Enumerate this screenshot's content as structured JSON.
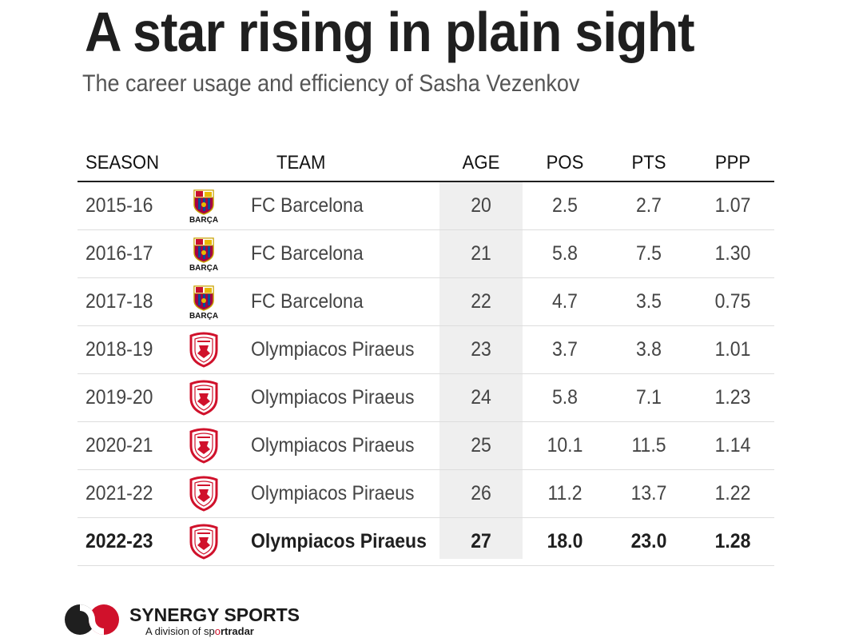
{
  "title": "A star rising in plain sight",
  "subtitle": "The career usage and efficiency of Sasha Vezenkov",
  "colors": {
    "accent_red": "#d0112b",
    "band": "#efefef",
    "text": "#1f1f1f"
  },
  "logos": {
    "barca_text": "BARÇA",
    "barca_icon": "fc-barcelona-crest-icon",
    "olympiacos_icon": "olympiacos-crest-icon"
  },
  "chart_data": {
    "type": "table",
    "columns": [
      "SEASON",
      "TEAM",
      "AGE",
      "POS",
      "PTS",
      "PPP"
    ],
    "rows": [
      {
        "season": "2015-16",
        "team": "FC Barcelona",
        "logo": "barca",
        "age": "20",
        "pos": "2.5",
        "pts": "2.7",
        "ppp": "1.07"
      },
      {
        "season": "2016-17",
        "team": "FC Barcelona",
        "logo": "barca",
        "age": "21",
        "pos": "5.8",
        "pts": "7.5",
        "ppp": "1.30"
      },
      {
        "season": "2017-18",
        "team": "FC Barcelona",
        "logo": "barca",
        "age": "22",
        "pos": "4.7",
        "pts": "3.5",
        "ppp": "0.75"
      },
      {
        "season": "2018-19",
        "team": "Olympiacos Piraeus",
        "logo": "olympiacos",
        "age": "23",
        "pos": "3.7",
        "pts": "3.8",
        "ppp": "1.01"
      },
      {
        "season": "2019-20",
        "team": "Olympiacos Piraeus",
        "logo": "olympiacos",
        "age": "24",
        "pos": "5.8",
        "pts": "7.1",
        "ppp": "1.23"
      },
      {
        "season": "2020-21",
        "team": "Olympiacos Piraeus",
        "logo": "olympiacos",
        "age": "25",
        "pos": "10.1",
        "pts": "11.5",
        "ppp": "1.14"
      },
      {
        "season": "2021-22",
        "team": "Olympiacos Piraeus",
        "logo": "olympiacos",
        "age": "26",
        "pos": "11.2",
        "pts": "13.7",
        "ppp": "1.22"
      },
      {
        "season": "2022-23",
        "team": "Olympiacos Piraeus",
        "logo": "olympiacos",
        "age": "27",
        "pos": "18.0",
        "pts": "23.0",
        "ppp": "1.28",
        "highlight": true
      }
    ]
  },
  "footer": {
    "brand": "SYNERGY SPORTS",
    "division_prefix": "A division of sp",
    "division_mid": "o",
    "division_suffix": "rtradar",
    "logo_icon": "synergy-sports-logo-icon"
  }
}
